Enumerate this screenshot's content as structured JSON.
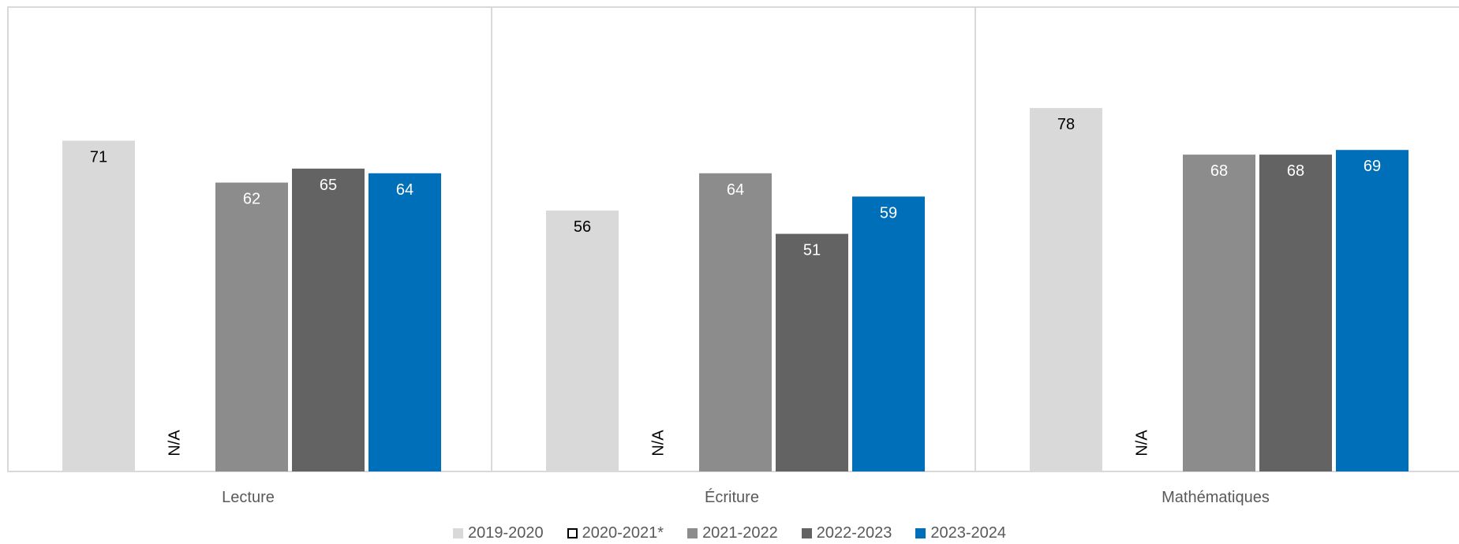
{
  "chart_data": {
    "type": "bar",
    "categories": [
      "Lecture",
      "Écriture",
      "Mathématiques"
    ],
    "series": [
      {
        "name": "2019-2020",
        "values": [
          71,
          56,
          78
        ],
        "color": "#d9d9d9",
        "label_color": "#000000"
      },
      {
        "name": "2020-2021*",
        "values": [
          null,
          null,
          null
        ],
        "missing_label": "N/A",
        "color": "#ffffff",
        "outline": "#000000",
        "label_color": "#000000"
      },
      {
        "name": "2021-2022",
        "values": [
          62,
          64,
          68
        ],
        "color": "#8c8c8c",
        "label_color": "#ffffff"
      },
      {
        "name": "2022-2023",
        "values": [
          65,
          51,
          68
        ],
        "color": "#636363",
        "label_color": "#ffffff"
      },
      {
        "name": "2023-2024",
        "values": [
          64,
          59,
          69
        ],
        "color": "#006fb9",
        "label_color": "#ffffff"
      }
    ],
    "ylim": [
      0,
      100
    ],
    "grid": false,
    "legend_position": "bottom",
    "title": "",
    "xlabel": "",
    "ylabel": ""
  }
}
